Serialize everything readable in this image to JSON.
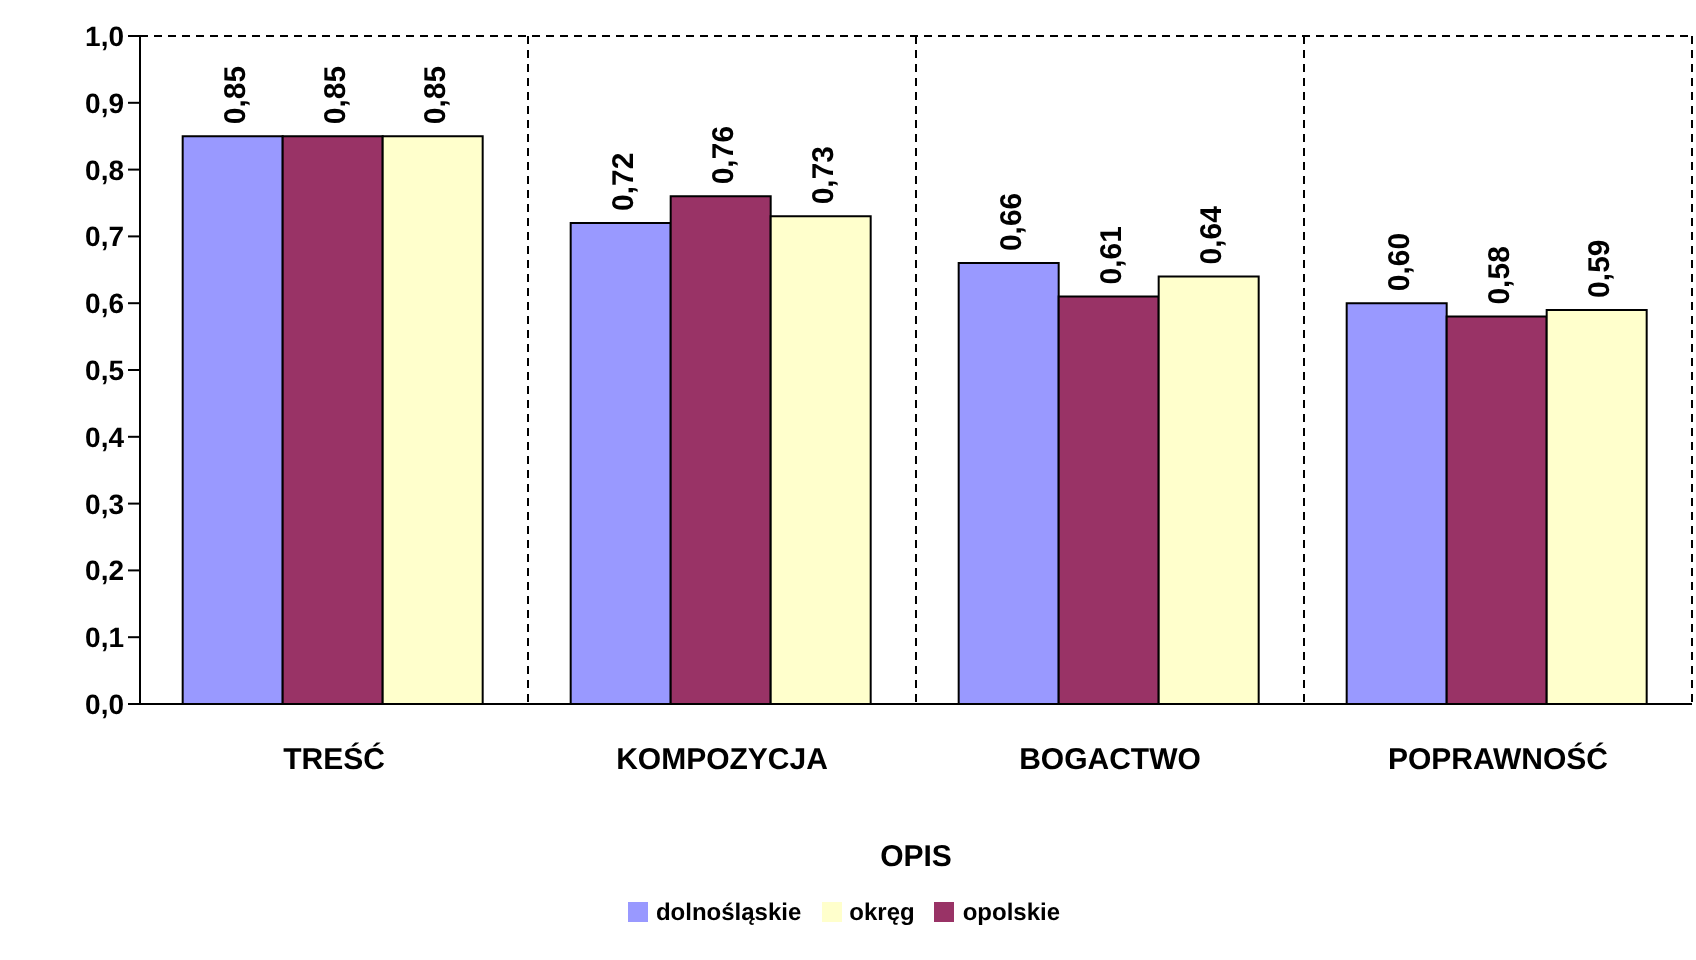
{
  "chart_data": {
    "type": "bar",
    "xlabel": "OPIS",
    "categories": [
      "TREŚĆ",
      "KOMPOZYCJA",
      "BOGACTWO",
      "POPRAWNOŚĆ"
    ],
    "series": [
      {
        "name": "dolnośląskie",
        "color": "#9999ff",
        "values": [
          0.85,
          0.72,
          0.66,
          0.6
        ],
        "value_labels": [
          "0,85",
          "0,72",
          "0,66",
          "0,60"
        ]
      },
      {
        "name": "opolskie",
        "color": "#993366",
        "values": [
          0.85,
          0.76,
          0.61,
          0.58
        ],
        "value_labels": [
          "0,85",
          "0,76",
          "0,61",
          "0,58"
        ]
      },
      {
        "name": "okręg",
        "color": "#ffffcc",
        "values": [
          0.85,
          0.73,
          0.64,
          0.59
        ],
        "value_labels": [
          "0,85",
          "0,73",
          "0,64",
          "0,59"
        ]
      }
    ],
    "ylim": [
      0,
      1
    ],
    "yticks": [
      {
        "value": 0,
        "label": "0,0"
      },
      {
        "value": 0.1,
        "label": "0,1"
      },
      {
        "value": 0.2,
        "label": "0,2"
      },
      {
        "value": 0.3,
        "label": "0,3"
      },
      {
        "value": 0.4,
        "label": "0,4"
      },
      {
        "value": 0.5,
        "label": "0,5"
      },
      {
        "value": 0.6,
        "label": "0,6"
      },
      {
        "value": 0.7,
        "label": "0,7"
      },
      {
        "value": 0.8,
        "label": "0,8"
      },
      {
        "value": 0.9,
        "label": "0,9"
      },
      {
        "value": 1,
        "label": "1,0"
      }
    ],
    "grid": "x",
    "legend": "bottom"
  }
}
